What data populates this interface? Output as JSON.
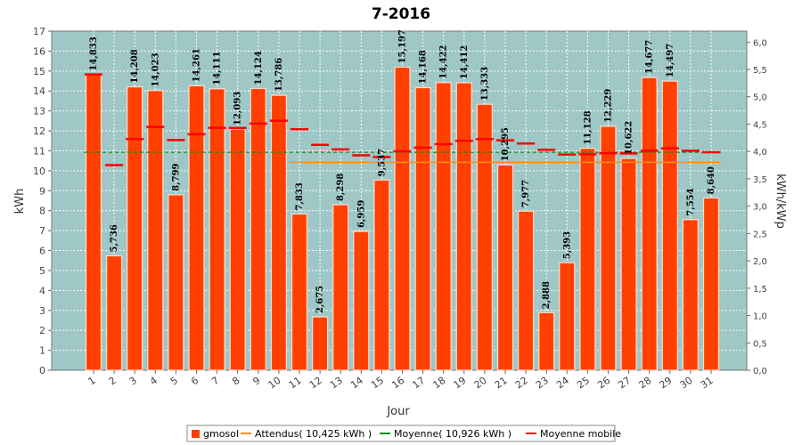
{
  "chart_data": {
    "type": "bar",
    "title": "7-2016",
    "xlabel": "Jour",
    "ylabel": "kWh",
    "y2label": "kWh/kWp",
    "ylim": [
      0,
      17
    ],
    "y2lim": [
      0,
      6.2
    ],
    "grid": true,
    "legend_position": "bottom",
    "categories": [
      "1",
      "2",
      "3",
      "4",
      "5",
      "6",
      "7",
      "8",
      "9",
      "10",
      "11",
      "12",
      "13",
      "14",
      "15",
      "16",
      "17",
      "18",
      "19",
      "20",
      "21",
      "22",
      "23",
      "24",
      "25",
      "26",
      "27",
      "28",
      "29",
      "30",
      "31"
    ],
    "yticks": [
      "0",
      "1",
      "2",
      "3",
      "4",
      "5",
      "6",
      "7",
      "8",
      "9",
      "10",
      "11",
      "12",
      "13",
      "14",
      "15",
      "16",
      "17"
    ],
    "y2ticks": [
      "0,0",
      "0,5",
      "1,0",
      "1,5",
      "2,0",
      "2,5",
      "3,0",
      "3,5",
      "4,0",
      "4,5",
      "5,0",
      "5,5",
      "6,0"
    ],
    "series": [
      {
        "name": "gmosol",
        "color": "#ff4000",
        "values": [
          14.833,
          5.736,
          14.208,
          14.023,
          8.799,
          14.261,
          14.111,
          12.093,
          14.124,
          13.786,
          7.833,
          2.675,
          8.298,
          6.959,
          9.537,
          15.197,
          14.168,
          14.422,
          14.412,
          13.333,
          10.295,
          7.977,
          2.888,
          5.393,
          11.128,
          12.229,
          10.622,
          14.677,
          14.497,
          7.554,
          8.64
        ],
        "labels": [
          "14,833",
          "5,736",
          "14,208",
          "14,023",
          "8,799",
          "14,261",
          "14,111",
          "12,093",
          "14,124",
          "13,786",
          "7,833",
          "2,675",
          "8,298",
          "6,959",
          "9,537",
          "15,197",
          "14,168",
          "14,422",
          "14,412",
          "13,333",
          "10,295",
          "7,977",
          "2,888",
          "5,393",
          "11,128",
          "12,229",
          "10,622",
          "14,677",
          "14,497",
          "7,554",
          "8,640"
        ]
      },
      {
        "name": "Attendus( 10,425 kWh )",
        "color": "#ff8c1a",
        "start_day": 11,
        "value": 10.425
      },
      {
        "name": "Moyenne( 10,926 kWh )",
        "color": "#1a8c1a",
        "value": 10.926
      },
      {
        "name": "Moyenne mobile",
        "color": "#ff0000",
        "values": [
          14.833,
          10.285,
          11.592,
          12.2,
          11.54,
          11.829,
          12.155,
          12.147,
          12.366,
          12.508,
          12.083,
          11.3,
          11.07,
          10.776,
          10.693,
          10.974,
          11.161,
          11.336,
          11.5,
          11.59,
          11.529,
          11.367,
          11.048,
          10.812,
          10.825,
          10.88,
          10.87,
          11.006,
          11.126,
          11.007,
          10.93
        ]
      }
    ]
  }
}
